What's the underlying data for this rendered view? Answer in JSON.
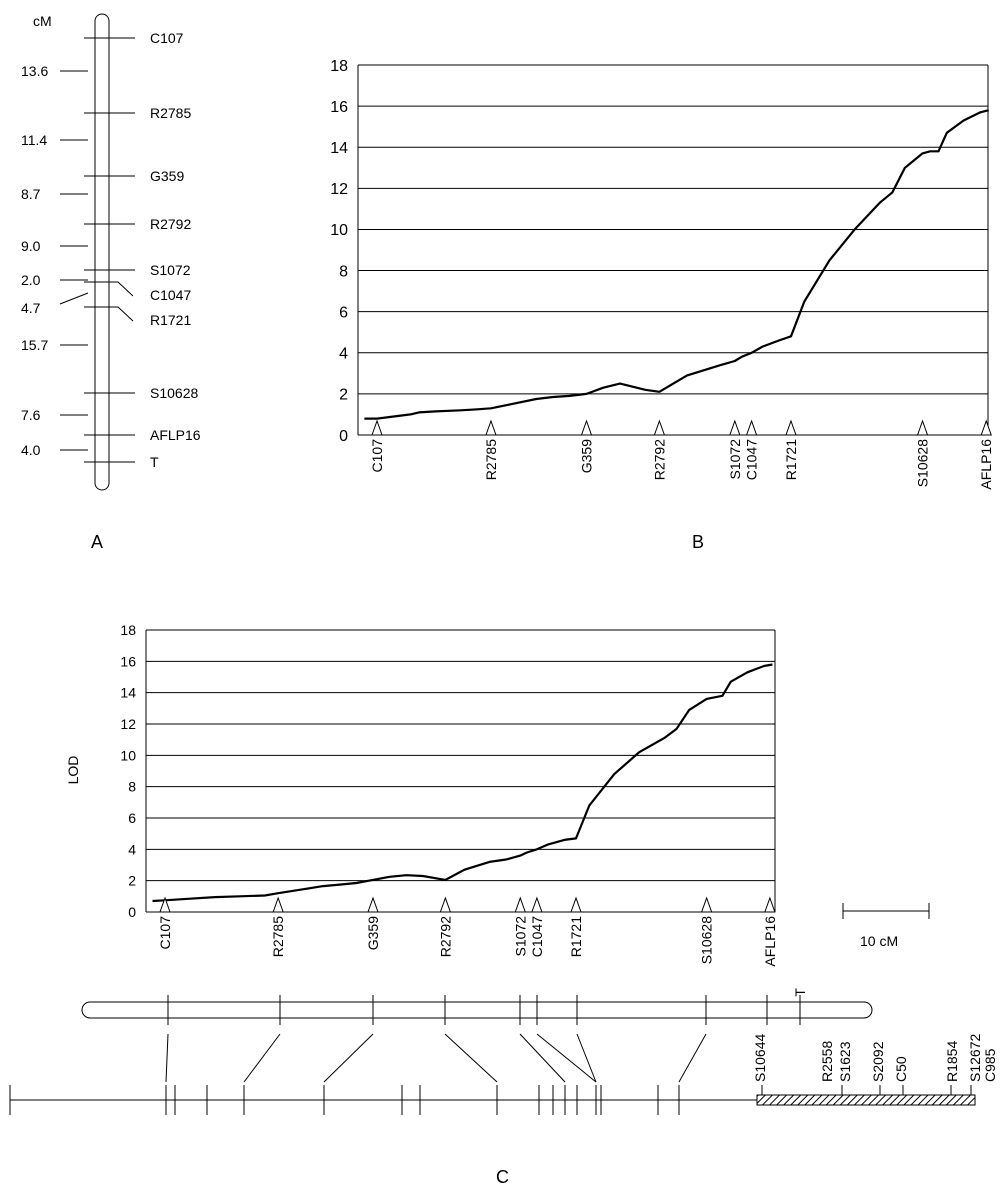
{
  "chart_data": [
    {
      "type": "line",
      "panel": "B",
      "ylim": [
        0,
        18
      ],
      "yticks": [
        0,
        2,
        4,
        6,
        8,
        10,
        12,
        14,
        16,
        18
      ],
      "ylabel": "",
      "markers": [
        "C107",
        "R2785",
        "G359",
        "R2792",
        "S1072",
        "C1047",
        "R1721",
        "S10628",
        "AFLP16"
      ],
      "marker_cM": [
        0,
        13.6,
        25.0,
        33.7,
        42.7,
        44.7,
        49.4,
        65.1,
        72.7
      ],
      "curve": {
        "x": [
          -1.5,
          0,
          2,
          4,
          5,
          7,
          10,
          12,
          13.6,
          16,
          19,
          21,
          23,
          24,
          25,
          27,
          29,
          32,
          33.7,
          37,
          41,
          42.7,
          43.5,
          44.7,
          46,
          48,
          49.4,
          51,
          54,
          57,
          60,
          61.5,
          63,
          65.1,
          66,
          67,
          68,
          70,
          72,
          73
        ],
        "y": [
          0.8,
          0.8,
          0.9,
          1.0,
          1.1,
          1.15,
          1.2,
          1.25,
          1.3,
          1.5,
          1.75,
          1.85,
          1.9,
          1.95,
          2.0,
          2.3,
          2.5,
          2.2,
          2.1,
          2.9,
          3.4,
          3.6,
          3.8,
          4.0,
          4.3,
          4.6,
          4.8,
          6.5,
          8.5,
          10.0,
          11.3,
          11.8,
          13.0,
          13.7,
          13.8,
          13.8,
          14.7,
          15.3,
          15.7,
          15.8
        ]
      }
    },
    {
      "type": "line",
      "panel": "C",
      "ylim": [
        0,
        18
      ],
      "yticks": [
        0,
        2,
        4,
        6,
        8,
        10,
        12,
        14,
        16,
        18
      ],
      "ylabel": "LOD",
      "markers": [
        "C107",
        "R2785",
        "G359",
        "R2792",
        "S1072",
        "C1047",
        "R1721",
        "S10628",
        "AFLP16"
      ],
      "marker_cM": [
        0,
        13.6,
        25.0,
        33.7,
        42.7,
        44.7,
        49.4,
        65.1,
        72.7
      ],
      "curve": {
        "x": [
          -1.5,
          0,
          3,
          6,
          9,
          12,
          13.6,
          16,
          19,
          21,
          23,
          25,
          27,
          29,
          31,
          33.7,
          36,
          39,
          41,
          42.7,
          43.5,
          44.7,
          46,
          48,
          49.4,
          51,
          54,
          57,
          60,
          61.5,
          63,
          65.1,
          66,
          67,
          68,
          70,
          72,
          73
        ],
        "y": [
          0.7,
          0.75,
          0.85,
          0.95,
          1.0,
          1.05,
          1.2,
          1.4,
          1.65,
          1.75,
          1.85,
          2.05,
          2.25,
          2.35,
          2.3,
          2.05,
          2.7,
          3.2,
          3.35,
          3.6,
          3.8,
          4.0,
          4.3,
          4.6,
          4.7,
          6.8,
          8.8,
          10.2,
          11.1,
          11.7,
          12.9,
          13.6,
          13.7,
          13.8,
          14.7,
          15.3,
          15.7,
          15.8
        ]
      }
    }
  ],
  "panel_a": {
    "unit": "cM",
    "markers": [
      "C107",
      "R2785",
      "G359",
      "R2792",
      "S1072",
      "C1047",
      "R1721",
      "S10628",
      "AFLP16",
      "T"
    ],
    "intervals": [
      "13.6",
      "11.4",
      "8.7",
      "9.0",
      "2.0",
      "4.7",
      "15.7",
      "7.6",
      "4.0"
    ]
  },
  "panel_c": {
    "scale_label": "10 cM",
    "chrom_markers": [
      "C107",
      "R2785",
      "G359",
      "R2792",
      "S1072",
      "C1047",
      "R1721",
      "S10628",
      "AFLP16",
      "T"
    ],
    "physical_labels": [
      "S10644",
      "R2558",
      "S1623",
      "S2092",
      "C50",
      "R1854",
      "S12672",
      "C985"
    ]
  },
  "panel_labels": {
    "a": "A",
    "b": "B",
    "c": "C"
  }
}
